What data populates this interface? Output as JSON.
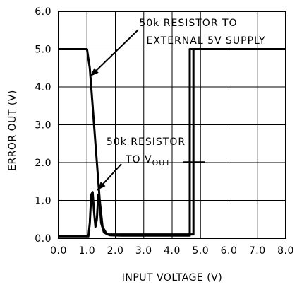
{
  "chart_data": {
    "type": "line",
    "xlabel": "INPUT VOLTAGE (V)",
    "ylabel": "ERROR OUT (V)",
    "xlim": [
      0,
      8
    ],
    "ylim": [
      0,
      6
    ],
    "x_ticks": [
      "0.0",
      "1.0",
      "2.0",
      "3.0",
      "4.0",
      "5.0",
      "6.0",
      "7.0",
      "8.0"
    ],
    "y_ticks": [
      "0.0",
      "1.0",
      "2.0",
      "3.0",
      "4.0",
      "5.0",
      "6.0"
    ],
    "grid": true,
    "series": [
      {
        "name": "50k RESISTOR TO EXTERNAL 5V SUPPLY",
        "points": [
          [
            0,
            5.0
          ],
          [
            1.0,
            5.0
          ],
          [
            1.1,
            4.5
          ],
          [
            1.3,
            2.5
          ],
          [
            1.45,
            1.0
          ],
          [
            1.55,
            0.3
          ],
          [
            1.7,
            0.1
          ],
          [
            4.75,
            0.1
          ],
          [
            4.75,
            5.0
          ],
          [
            8.0,
            5.0
          ]
        ]
      },
      {
        "name": "50k RESISTOR TO V_OUT",
        "points": [
          [
            0,
            0.05
          ],
          [
            1.05,
            0.05
          ],
          [
            1.1,
            0.4
          ],
          [
            1.15,
            1.15
          ],
          [
            1.2,
            1.22
          ],
          [
            1.25,
            0.7
          ],
          [
            1.3,
            0.3
          ],
          [
            1.35,
            0.5
          ],
          [
            1.4,
            1.15
          ],
          [
            1.45,
            0.9
          ],
          [
            1.5,
            0.4
          ],
          [
            1.6,
            0.15
          ],
          [
            1.8,
            0.08
          ],
          [
            2.2,
            0.07
          ],
          [
            4.62,
            0.07
          ],
          [
            4.62,
            5.0
          ],
          [
            8.0,
            5.0
          ]
        ]
      }
    ],
    "annotations": [
      {
        "lines": [
          "50k RESISTOR TO",
          "EXTERNAL 5V SUPPLY"
        ]
      },
      {
        "lines": [
          "50k RESISTOR",
          "TO V",
          "OUT"
        ]
      }
    ]
  }
}
